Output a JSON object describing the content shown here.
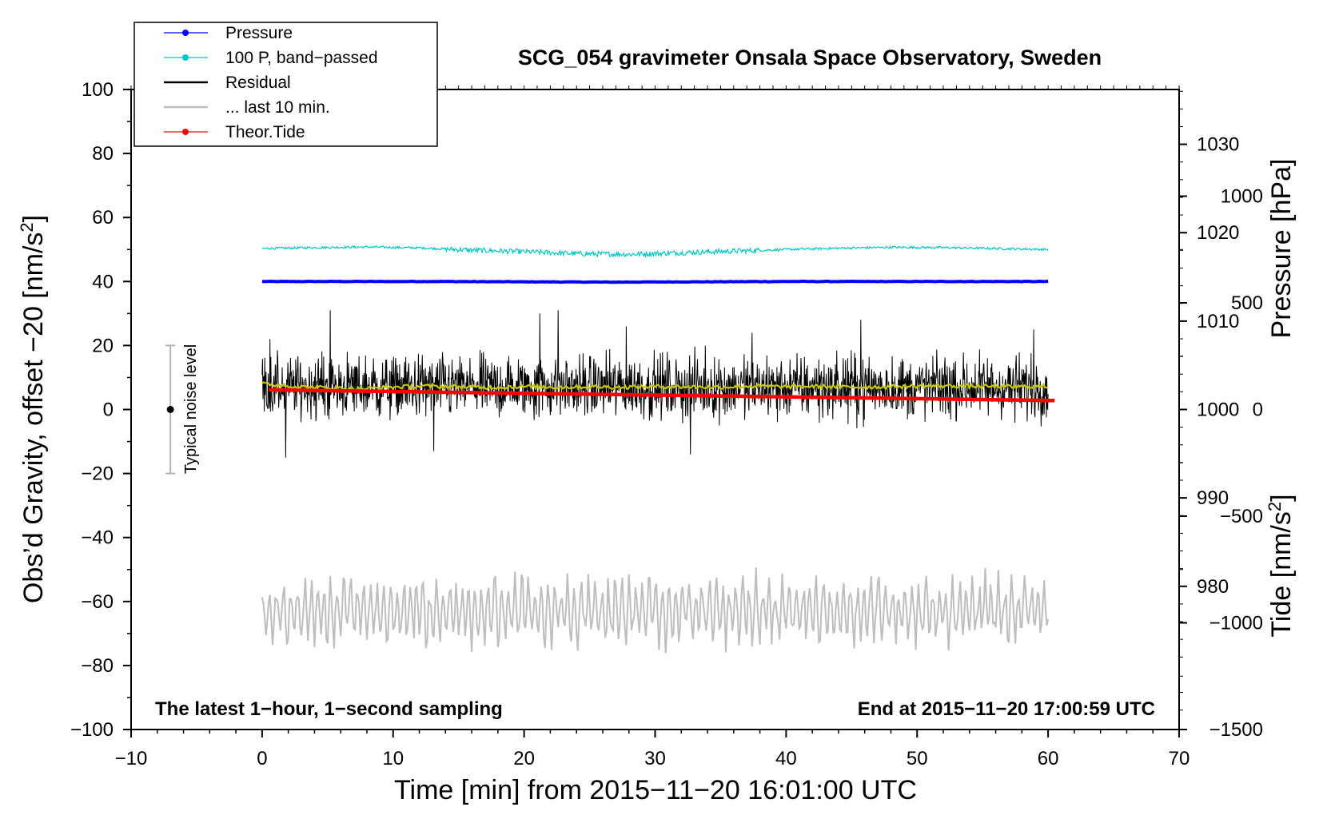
{
  "chart_data": {
    "type": "line",
    "title": "SCG_054 gravimeter Onsala Space Observatory, Sweden",
    "xlabel": "Time [min] from 2015−11−20 16:01:00 UTC",
    "ylabel_left": "Obs’d Gravity, offset −20 [nm/s",
    "ylabel_left_sup": "2",
    "ylabel_left_end": "]",
    "ylabel_right_pressure": "Pressure [hPa]",
    "ylabel_right_tide": "Tide [nm/s",
    "ylabel_right_tide_sup": "2",
    "ylabel_right_tide_end": "]",
    "xlim": [
      -10,
      70
    ],
    "ylim": [
      -100,
      100
    ],
    "pressure_range": [
      963.8,
      1036.2
    ],
    "tide_range": [
      -1500,
      1500
    ],
    "x_ticks": [
      -10,
      0,
      10,
      20,
      30,
      40,
      50,
      60,
      70
    ],
    "x_tick_labels": [
      "−10",
      "0",
      "10",
      "20",
      "30",
      "40",
      "50",
      "60",
      "70"
    ],
    "y_ticks": [
      -100,
      -80,
      -60,
      -40,
      -20,
      0,
      20,
      40,
      60,
      80,
      100
    ],
    "y_tick_labels": [
      "−100",
      "−80",
      "−60",
      "−40",
      "−20",
      "0",
      "20",
      "40",
      "60",
      "80",
      "100"
    ],
    "pressure_ticks": [
      980,
      990,
      1000,
      1010,
      1020,
      1030
    ],
    "pressure_tick_labels": [
      "980",
      "990",
      "1000",
      "1010",
      "1020",
      "1030"
    ],
    "tide_ticks": [
      -1500,
      -1000,
      -500,
      0,
      500,
      1000
    ],
    "tide_tick_labels": [
      "−1500",
      "−1000",
      "−500",
      "0",
      "500",
      "1000"
    ],
    "legend": [
      {
        "label": "Pressure",
        "color": "#0000ff",
        "marker": true
      },
      {
        "label": "100 P, band−passed",
        "color": "#00c8c8",
        "marker": true
      },
      {
        "label": "Residual",
        "color": "#000000",
        "marker": false
      },
      {
        "label": "... last 10 min.",
        "color": "#bebebe",
        "marker": false
      },
      {
        "label": "Theor.Tide",
        "color": "#ff0000",
        "marker": true
      }
    ],
    "series": [
      {
        "name": "Pressure",
        "color": "#0000ff",
        "axis": "left",
        "x_range": [
          0,
          60
        ],
        "values": [
          40.0,
          40.0,
          40.0,
          39.9,
          39.8,
          39.9,
          40.0,
          40.0,
          40.0,
          40.0
        ]
      },
      {
        "name": "100 P, band−passed",
        "color": "#00c8c8",
        "axis": "left",
        "x_range": [
          0,
          60
        ],
        "values": [
          50.3,
          50.6,
          50.8,
          50.5,
          49.8,
          49.3,
          48.7,
          48.5,
          49.0,
          49.5,
          50.0,
          50.4,
          50.7,
          50.6,
          50.3,
          50.0
        ]
      },
      {
        "name": "Residual",
        "color": "#000000",
        "axis": "left",
        "x_range": [
          0,
          60
        ],
        "mean": 7,
        "spread": 9,
        "peaks": [
          [
            0.6,
            22
          ],
          [
            1.8,
            -15
          ],
          [
            5.2,
            31
          ],
          [
            13.1,
            -13
          ],
          [
            21.2,
            30
          ],
          [
            22.6,
            31
          ],
          [
            27.8,
            26
          ],
          [
            32.7,
            -14
          ],
          [
            37.4,
            24
          ],
          [
            45.7,
            28
          ],
          [
            58.9,
            25
          ]
        ]
      },
      {
        "name": "Smoothed residual",
        "color": "#c8c800",
        "axis": "left",
        "x_range": [
          0,
          60
        ],
        "values": [
          8.0,
          7.2,
          6.8,
          6.5,
          7.0,
          7.3,
          7.1,
          6.9,
          7.2,
          7.0,
          7.1,
          7.0,
          7.2,
          7.1,
          7.0,
          7.3,
          7.1,
          7.2,
          7.0,
          7.1,
          7.3,
          7.4,
          7.2,
          7.1,
          7.3
        ]
      },
      {
        "name": "... last 10 min.",
        "color": "#bebebe",
        "axis": "left",
        "x_range": [
          0,
          60
        ],
        "mean": -63,
        "spread": 11
      },
      {
        "name": "Theor.Tide",
        "color": "#ff0000",
        "axis": "tide",
        "x_range": [
          0.5,
          60.5
        ],
        "values": [
          92,
          42
        ]
      }
    ],
    "noise_bar": {
      "label": "Typical noise level",
      "x": -7,
      "center": 0,
      "low": -20,
      "high": 20
    },
    "annotation_left": "The latest 1−hour, 1−second sampling",
    "annotation_right": "End at 2015−11−20 17:00:59 UTC"
  }
}
